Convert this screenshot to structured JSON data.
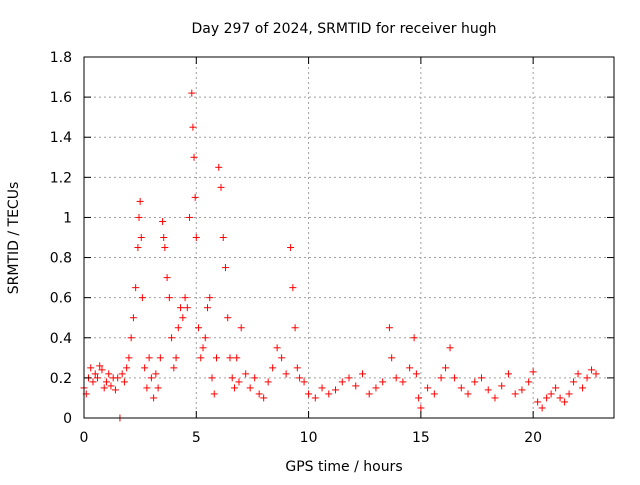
{
  "chart_data": {
    "type": "scatter",
    "title": "Day 297 of 2024, SRMTID for receiver hugh",
    "xlabel": "GPS time / hours",
    "ylabel": "SRMTID / TECUs",
    "xlim": [
      0,
      23.6
    ],
    "ylim": [
      0,
      1.8
    ],
    "xticks": [
      0,
      5,
      10,
      15,
      20
    ],
    "xtick_labels": [
      "0",
      "5",
      "10",
      "15",
      "20"
    ],
    "yticks": [
      0,
      0.2,
      0.4,
      0.6,
      0.8,
      1,
      1.2,
      1.4,
      1.6,
      1.8
    ],
    "ytick_labels": [
      "0",
      "0.2",
      "0.4",
      "0.6",
      "0.8",
      "1",
      "1.2",
      "1.4",
      "1.6",
      "1.8"
    ],
    "grid": true,
    "marker": "plus",
    "marker_color": "#ff0000",
    "series": [
      {
        "name": "SRMTID",
        "x": [
          0.0,
          0.1,
          0.2,
          0.3,
          0.4,
          0.5,
          0.6,
          0.7,
          0.8,
          0.9,
          1.0,
          1.1,
          1.2,
          1.3,
          1.4,
          1.5,
          1.6,
          1.7,
          1.8,
          1.9,
          2.0,
          2.1,
          2.2,
          2.3,
          2.4,
          2.45,
          2.5,
          2.55,
          2.6,
          2.7,
          2.8,
          2.9,
          3.0,
          3.1,
          3.2,
          3.3,
          3.4,
          3.5,
          3.55,
          3.6,
          3.7,
          3.8,
          3.9,
          4.0,
          4.1,
          4.2,
          4.3,
          4.4,
          4.5,
          4.6,
          4.7,
          4.8,
          4.85,
          4.9,
          4.95,
          5.0,
          5.1,
          5.2,
          5.3,
          5.4,
          5.5,
          5.6,
          5.7,
          5.8,
          5.9,
          6.0,
          6.1,
          6.2,
          6.3,
          6.4,
          6.5,
          6.6,
          6.7,
          6.8,
          6.9,
          7.0,
          7.2,
          7.4,
          7.6,
          7.8,
          8.0,
          8.2,
          8.4,
          8.6,
          8.8,
          9.0,
          9.2,
          9.3,
          9.4,
          9.5,
          9.6,
          9.8,
          10.0,
          10.3,
          10.6,
          10.9,
          11.2,
          11.5,
          11.8,
          12.1,
          12.4,
          12.7,
          13.0,
          13.3,
          13.6,
          13.7,
          13.9,
          14.2,
          14.5,
          14.7,
          14.8,
          14.9,
          15.0,
          15.3,
          15.6,
          15.9,
          16.1,
          16.3,
          16.5,
          16.8,
          17.1,
          17.4,
          17.7,
          18.0,
          18.3,
          18.6,
          18.9,
          19.2,
          19.5,
          19.8,
          20.0,
          20.2,
          20.4,
          20.6,
          20.8,
          21.0,
          21.2,
          21.4,
          21.6,
          21.8,
          22.0,
          22.2,
          22.4,
          22.6,
          22.8
        ],
        "y": [
          0.15,
          0.12,
          0.2,
          0.25,
          0.18,
          0.22,
          0.2,
          0.26,
          0.24,
          0.15,
          0.18,
          0.22,
          0.16,
          0.2,
          0.14,
          0.2,
          0.0,
          0.22,
          0.18,
          0.25,
          0.3,
          0.4,
          0.5,
          0.65,
          0.85,
          1.0,
          1.08,
          0.9,
          0.6,
          0.25,
          0.15,
          0.3,
          0.2,
          0.1,
          0.22,
          0.15,
          0.3,
          0.98,
          0.9,
          0.85,
          0.7,
          0.6,
          0.4,
          0.25,
          0.3,
          0.45,
          0.55,
          0.5,
          0.6,
          0.55,
          1.0,
          1.62,
          1.45,
          1.3,
          1.1,
          0.9,
          0.45,
          0.3,
          0.35,
          0.4,
          0.55,
          0.6,
          0.2,
          0.12,
          0.3,
          1.25,
          1.15,
          0.9,
          0.75,
          0.5,
          0.3,
          0.2,
          0.15,
          0.3,
          0.18,
          0.45,
          0.22,
          0.15,
          0.2,
          0.12,
          0.1,
          0.18,
          0.25,
          0.35,
          0.3,
          0.22,
          0.85,
          0.65,
          0.45,
          0.25,
          0.2,
          0.18,
          0.12,
          0.1,
          0.15,
          0.12,
          0.14,
          0.18,
          0.2,
          0.16,
          0.22,
          0.12,
          0.15,
          0.18,
          0.45,
          0.3,
          0.2,
          0.18,
          0.25,
          0.4,
          0.22,
          0.1,
          0.05,
          0.15,
          0.12,
          0.2,
          0.25,
          0.35,
          0.2,
          0.15,
          0.12,
          0.18,
          0.2,
          0.14,
          0.1,
          0.16,
          0.22,
          0.12,
          0.14,
          0.18,
          0.23,
          0.08,
          0.05,
          0.1,
          0.12,
          0.15,
          0.1,
          0.08,
          0.12,
          0.18,
          0.22,
          0.15,
          0.2,
          0.24,
          0.22
        ]
      }
    ]
  }
}
